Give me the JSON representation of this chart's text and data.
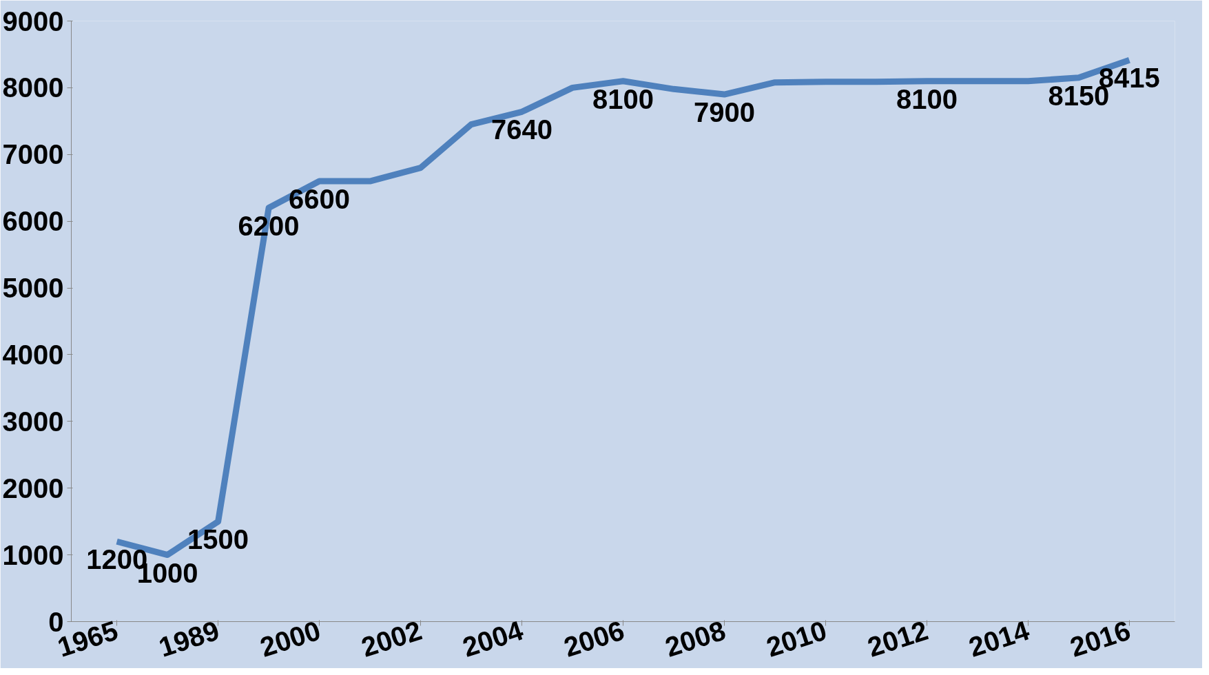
{
  "chart_data": {
    "type": "line",
    "categories": [
      "1965",
      null,
      "1989",
      null,
      "2000",
      null,
      "2002",
      null,
      "2004",
      null,
      "2006",
      null,
      "2008",
      null,
      "2010",
      null,
      "2012",
      null,
      "2014",
      null,
      "2016"
    ],
    "series": [
      {
        "color": "#4f81bd",
        "values": [
          1200,
          1000,
          1500,
          6200,
          6600,
          6600,
          6800,
          7450,
          7640,
          8000,
          8100,
          7980,
          7900,
          8080,
          8090,
          8090,
          8100,
          8100,
          8100,
          8150,
          8415
        ],
        "value_labels": [
          "1200",
          "1000",
          "1500",
          "6200",
          "6600",
          null,
          null,
          null,
          "7640",
          null,
          "8100",
          null,
          "7900",
          null,
          null,
          null,
          "8100",
          null,
          null,
          "8150",
          "8415"
        ]
      }
    ],
    "ylim": [
      0,
      9000
    ],
    "yticks": [
      0,
      1000,
      2000,
      3000,
      4000,
      5000,
      6000,
      7000,
      8000,
      9000
    ],
    "grid": false
  }
}
